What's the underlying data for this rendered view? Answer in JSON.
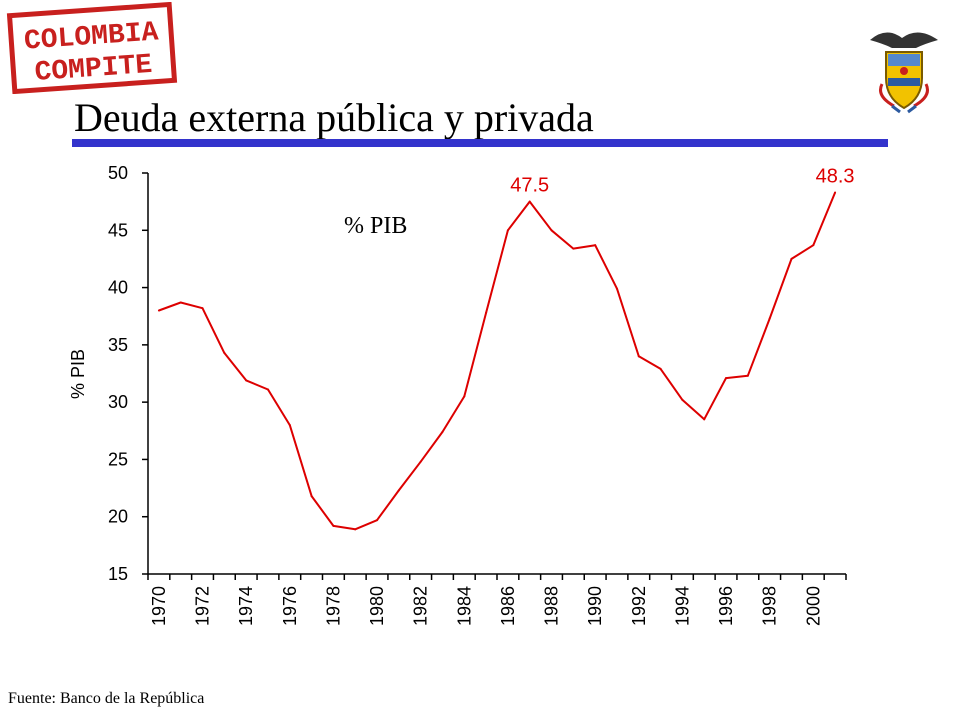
{
  "header": {
    "logo_text": [
      "COLOMBIA",
      "COMPITE"
    ],
    "title": "Deuda externa pública y privada",
    "rule_color": "#3333cc"
  },
  "footer": {
    "source": "Fuente: Banco de la República"
  },
  "chart_data": {
    "type": "line",
    "title": "",
    "annotation": "% PIB",
    "xlabel": "",
    "ylabel": "% PIB",
    "ylim": [
      15,
      50
    ],
    "yticks": [
      15,
      20,
      25,
      30,
      35,
      40,
      45,
      50
    ],
    "xtick_labels": [
      "1970",
      "1972",
      "1974",
      "1976",
      "1978",
      "1980",
      "1982",
      "1984",
      "1986",
      "1988",
      "1990",
      "1992",
      "1994",
      "1996",
      "1998",
      "2000"
    ],
    "x": [
      1970,
      1971,
      1972,
      1973,
      1974,
      1975,
      1976,
      1977,
      1978,
      1979,
      1980,
      1981,
      1982,
      1983,
      1984,
      1985,
      1986,
      1987,
      1988,
      1989,
      1990,
      1991,
      1992,
      1993,
      1994,
      1995,
      1996,
      1997,
      1998,
      1999,
      2000,
      2001
    ],
    "series": [
      {
        "color": "#dd0000",
        "values": [
          38.0,
          38.7,
          38.2,
          34.3,
          31.9,
          31.1,
          28.0,
          21.8,
          19.2,
          18.9,
          19.7,
          22.3,
          24.8,
          27.4,
          30.5,
          37.8,
          45.0,
          47.5,
          45.0,
          43.4,
          43.7,
          39.9,
          34.0,
          32.9,
          30.2,
          28.5,
          32.1,
          32.3,
          37.3,
          42.5,
          43.7,
          48.3
        ]
      }
    ],
    "data_labels": [
      {
        "x": 1987,
        "text": "47.5"
      },
      {
        "x": 2001,
        "text": "48.3"
      }
    ],
    "label_color": "#dd0000",
    "grid": false,
    "legend": "none"
  }
}
